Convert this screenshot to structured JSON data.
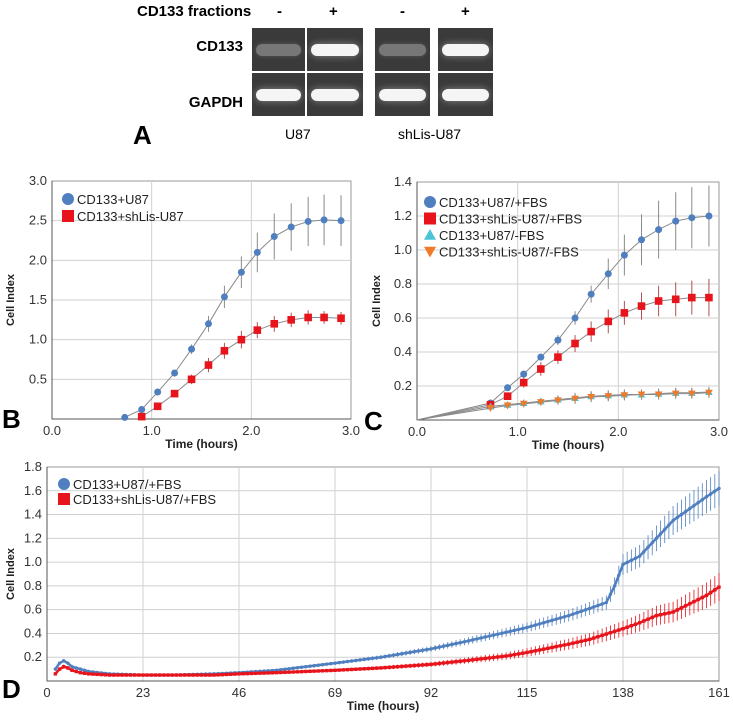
{
  "panel_a": {
    "letter": "A",
    "fractions_label": "CD133 fractions",
    "lane_signs": [
      "-",
      "+",
      "-",
      "+"
    ],
    "row_labels": [
      "CD133",
      "GAPDH"
    ],
    "cell_lines": [
      "U87",
      "shLis-U87"
    ],
    "band_intensity": {
      "CD133": [
        0.2,
        1.0,
        0.2,
        1.0
      ],
      "GAPDH": [
        1.0,
        1.0,
        1.0,
        1.0
      ]
    }
  },
  "chart_data": [
    {
      "id": "B",
      "type": "line",
      "letter": "B",
      "title": "",
      "xlabel": "Time (hours)",
      "ylabel": "Cell Index",
      "xlim": [
        0,
        3.0
      ],
      "ylim": [
        0,
        3.0
      ],
      "xticks": [
        "0.0",
        "1.0",
        "2.0",
        "3.0"
      ],
      "yticks": [
        "0.5",
        "1.0",
        "1.5",
        "2.0",
        "2.5",
        "3.0"
      ],
      "ytick_values": [
        0.5,
        1.0,
        1.5,
        2.0,
        2.5,
        3.0
      ],
      "xtick_values": [
        0,
        1,
        2,
        3
      ],
      "grid": true,
      "legend_position": "top-left",
      "series": [
        {
          "name": "CD133+U87",
          "color": "#4f7fbf",
          "marker": "circle",
          "x": [
            0.73,
            0.9,
            1.06,
            1.23,
            1.4,
            1.57,
            1.73,
            1.9,
            2.06,
            2.23,
            2.4,
            2.57,
            2.73,
            2.9
          ],
          "y": [
            0.02,
            0.12,
            0.34,
            0.58,
            0.88,
            1.2,
            1.54,
            1.85,
            2.1,
            2.3,
            2.42,
            2.49,
            2.51,
            2.5
          ],
          "err": [
            0.01,
            0.02,
            0.03,
            0.04,
            0.06,
            0.1,
            0.14,
            0.2,
            0.25,
            0.29,
            0.3,
            0.31,
            0.32,
            0.32
          ]
        },
        {
          "name": "CD133+shLis-U87",
          "color": "#e8141c",
          "marker": "square",
          "x": [
            0.9,
            1.06,
            1.23,
            1.4,
            1.57,
            1.73,
            1.9,
            2.06,
            2.23,
            2.4,
            2.57,
            2.73,
            2.9
          ],
          "y": [
            0.03,
            0.16,
            0.32,
            0.5,
            0.68,
            0.86,
            1.0,
            1.12,
            1.2,
            1.25,
            1.28,
            1.28,
            1.27
          ],
          "err": [
            0.01,
            0.02,
            0.03,
            0.06,
            0.09,
            0.1,
            0.11,
            0.1,
            0.1,
            0.09,
            0.09,
            0.08,
            0.08
          ]
        }
      ]
    },
    {
      "id": "C",
      "type": "line",
      "letter": "C",
      "title": "",
      "xlabel": "Time (hours)",
      "ylabel": "Cell Index",
      "xlim": [
        0,
        3.0
      ],
      "ylim": [
        0,
        1.4
      ],
      "xticks": [
        "0.0",
        "1.0",
        "2.0",
        "3.0"
      ],
      "yticks": [
        "0.2",
        "0.4",
        "0.6",
        "0.8",
        "1.0",
        "1.2",
        "1.4"
      ],
      "ytick_values": [
        0.2,
        0.4,
        0.6,
        0.8,
        1.0,
        1.2,
        1.4
      ],
      "xtick_values": [
        0,
        1,
        2,
        3
      ],
      "grid": true,
      "legend_position": "top-left",
      "series": [
        {
          "name": "CD133+U87/+FBS",
          "color": "#4f7fbf",
          "marker": "circle",
          "x": [
            0,
            0.73,
            0.9,
            1.06,
            1.23,
            1.4,
            1.57,
            1.73,
            1.9,
            2.06,
            2.23,
            2.4,
            2.57,
            2.73,
            2.9
          ],
          "y": [
            0,
            0.1,
            0.19,
            0.27,
            0.37,
            0.47,
            0.6,
            0.74,
            0.86,
            0.97,
            1.06,
            1.12,
            1.17,
            1.19,
            1.2
          ],
          "err": [
            0,
            0.01,
            0.02,
            0.02,
            0.02,
            0.03,
            0.04,
            0.05,
            0.09,
            0.12,
            0.15,
            0.17,
            0.17,
            0.18,
            0.18
          ]
        },
        {
          "name": "CD133+shLis-U87/+FBS",
          "color": "#e8141c",
          "marker": "square",
          "x": [
            0,
            0.73,
            0.9,
            1.06,
            1.23,
            1.4,
            1.57,
            1.73,
            1.9,
            2.06,
            2.23,
            2.4,
            2.57,
            2.73,
            2.9
          ],
          "y": [
            0,
            0.09,
            0.14,
            0.22,
            0.3,
            0.37,
            0.45,
            0.52,
            0.58,
            0.63,
            0.67,
            0.7,
            0.71,
            0.72,
            0.72
          ],
          "err": [
            0,
            0.01,
            0.02,
            0.03,
            0.04,
            0.04,
            0.05,
            0.06,
            0.07,
            0.07,
            0.08,
            0.09,
            0.1,
            0.1,
            0.11
          ]
        },
        {
          "name": "CD133+U87/-FBS",
          "color": "#4dc3d6",
          "marker": "triangle-up",
          "x": [
            0,
            0.73,
            0.9,
            1.06,
            1.23,
            1.4,
            1.57,
            1.73,
            1.9,
            2.06,
            2.23,
            2.4,
            2.57,
            2.73,
            2.9
          ],
          "y": [
            0,
            0.08,
            0.09,
            0.1,
            0.11,
            0.12,
            0.13,
            0.14,
            0.145,
            0.15,
            0.15,
            0.155,
            0.16,
            0.16,
            0.165
          ],
          "err": [
            0,
            0.01,
            0.015,
            0.02,
            0.02,
            0.025,
            0.03,
            0.03,
            0.03,
            0.03,
            0.03,
            0.03,
            0.03,
            0.03,
            0.03
          ]
        },
        {
          "name": "CD133+shLis-U87/-FBS",
          "color": "#f07a2a",
          "marker": "triangle-down",
          "x": [
            0,
            0.73,
            0.9,
            1.06,
            1.23,
            1.4,
            1.57,
            1.73,
            1.9,
            2.06,
            2.23,
            2.4,
            2.57,
            2.73,
            2.9
          ],
          "y": [
            0,
            0.07,
            0.085,
            0.095,
            0.105,
            0.115,
            0.125,
            0.135,
            0.14,
            0.145,
            0.15,
            0.15,
            0.155,
            0.155,
            0.16
          ],
          "err": [
            0,
            0.01,
            0.015,
            0.02,
            0.02,
            0.025,
            0.03,
            0.03,
            0.03,
            0.03,
            0.03,
            0.03,
            0.03,
            0.03,
            0.03
          ]
        }
      ]
    },
    {
      "id": "D",
      "type": "line",
      "letter": "D",
      "title": "",
      "xlabel": "Time (hours)",
      "ylabel": "Cell Index",
      "xlim": [
        0,
        161
      ],
      "ylim": [
        0,
        1.8
      ],
      "xticks": [
        "0",
        "23",
        "46",
        "69",
        "92",
        "115",
        "138",
        "161"
      ],
      "xtick_values": [
        0,
        23,
        46,
        69,
        92,
        115,
        138,
        161
      ],
      "yticks": [
        "0.2",
        "0.4",
        "0.6",
        "0.8",
        "1.0",
        "1.2",
        "1.4",
        "1.6",
        "1.8"
      ],
      "ytick_values": [
        0.2,
        0.4,
        0.6,
        0.8,
        1.0,
        1.2,
        1.4,
        1.6,
        1.8
      ],
      "grid": true,
      "legend_position": "top-left",
      "series": [
        {
          "name": "CD133+U87/+FBS",
          "color": "#4f7fbf",
          "marker": "circle",
          "x": [
            2,
            3,
            4,
            5,
            6,
            8,
            10,
            15,
            23,
            30,
            40,
            46,
            55,
            69,
            80,
            92,
            100,
            110,
            115,
            125,
            130,
            134,
            136,
            138,
            142,
            146,
            150,
            154,
            158,
            161
          ],
          "y": [
            0.1,
            0.15,
            0.17,
            0.15,
            0.12,
            0.1,
            0.08,
            0.06,
            0.05,
            0.05,
            0.06,
            0.07,
            0.09,
            0.15,
            0.2,
            0.27,
            0.33,
            0.41,
            0.45,
            0.55,
            0.61,
            0.66,
            0.8,
            0.98,
            1.05,
            1.2,
            1.35,
            1.45,
            1.55,
            1.62
          ],
          "err_frac": 0.03
        },
        {
          "name": "CD133+shLis-U87/+FBS",
          "color": "#e8141c",
          "marker": "square",
          "x": [
            2,
            3,
            4,
            5,
            6,
            8,
            10,
            15,
            23,
            30,
            40,
            46,
            55,
            69,
            80,
            92,
            100,
            110,
            115,
            125,
            130,
            138,
            142,
            146,
            150,
            154,
            158,
            161
          ],
          "y": [
            0.06,
            0.1,
            0.12,
            0.11,
            0.09,
            0.07,
            0.06,
            0.05,
            0.05,
            0.05,
            0.05,
            0.06,
            0.07,
            0.09,
            0.11,
            0.14,
            0.17,
            0.21,
            0.24,
            0.31,
            0.35,
            0.44,
            0.49,
            0.55,
            0.58,
            0.65,
            0.72,
            0.79
          ],
          "err_frac": 0.05
        }
      ]
    }
  ]
}
